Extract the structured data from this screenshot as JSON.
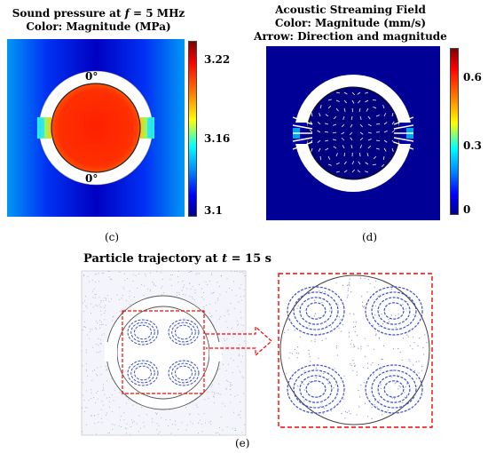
{
  "panel_c": {
    "title_prefix": "Sound pressure at ",
    "title_var": "f",
    "title_suffix": " = 5 MHz",
    "subtitle": "Color: Magnitude (MPa)",
    "angle_top": "0°",
    "angle_bottom": "0°",
    "colorbar_ticks": [
      "3.22",
      "3.16",
      "3.1"
    ],
    "caption": "(c)"
  },
  "panel_d": {
    "title": "Acoustic Streaming Field",
    "subtitle1": "Color: Magnitude (mm/s)",
    "subtitle2": "Arrow: Direction and magnitude",
    "colorbar_ticks": [
      "0.6",
      "0.3",
      "0"
    ],
    "caption": "(d)"
  },
  "panel_e": {
    "title_prefix": "Particle trajectory at ",
    "title_var": "t",
    "title_suffix": " = 15 s",
    "caption": "(e)"
  },
  "colors": {
    "jet_dark_red": "#7f0000",
    "jet_red": "#ff0000",
    "jet_yellow": "#ffff00",
    "jet_cyan": "#00ffff",
    "jet_blue": "#0000ff",
    "jet_dark_blue": "#00008f",
    "zoom_box": "#ff0000",
    "trajectory": "#3a4fd0"
  }
}
